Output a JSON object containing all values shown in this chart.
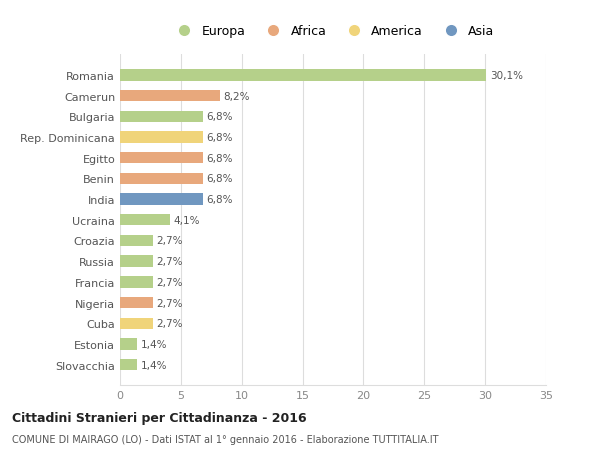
{
  "countries": [
    "Romania",
    "Camerun",
    "Bulgaria",
    "Rep. Dominicana",
    "Egitto",
    "Benin",
    "India",
    "Ucraina",
    "Croazia",
    "Russia",
    "Francia",
    "Nigeria",
    "Cuba",
    "Estonia",
    "Slovacchia"
  ],
  "values": [
    30.1,
    8.2,
    6.8,
    6.8,
    6.8,
    6.8,
    6.8,
    4.1,
    2.7,
    2.7,
    2.7,
    2.7,
    2.7,
    1.4,
    1.4
  ],
  "labels": [
    "30,1%",
    "8,2%",
    "6,8%",
    "6,8%",
    "6,8%",
    "6,8%",
    "6,8%",
    "4,1%",
    "2,7%",
    "2,7%",
    "2,7%",
    "2,7%",
    "2,7%",
    "1,4%",
    "1,4%"
  ],
  "colors": [
    "#b5d08a",
    "#e8a87c",
    "#b5d08a",
    "#f0d47a",
    "#e8a87c",
    "#e8a87c",
    "#7097c0",
    "#b5d08a",
    "#b5d08a",
    "#b5d08a",
    "#b5d08a",
    "#e8a87c",
    "#f0d47a",
    "#b5d08a",
    "#b5d08a"
  ],
  "legend_labels": [
    "Europa",
    "Africa",
    "America",
    "Asia"
  ],
  "legend_colors": [
    "#b5d08a",
    "#e8a87c",
    "#f0d47a",
    "#7097c0"
  ],
  "title": "Cittadini Stranieri per Cittadinanza - 2016",
  "subtitle": "COMUNE DI MAIRAGO (LO) - Dati ISTAT al 1° gennaio 2016 - Elaborazione TUTTITALIA.IT",
  "xlim": [
    0,
    35
  ],
  "xticks": [
    0,
    5,
    10,
    15,
    20,
    25,
    30,
    35
  ],
  "background_color": "#ffffff",
  "grid_color": "#dddddd"
}
